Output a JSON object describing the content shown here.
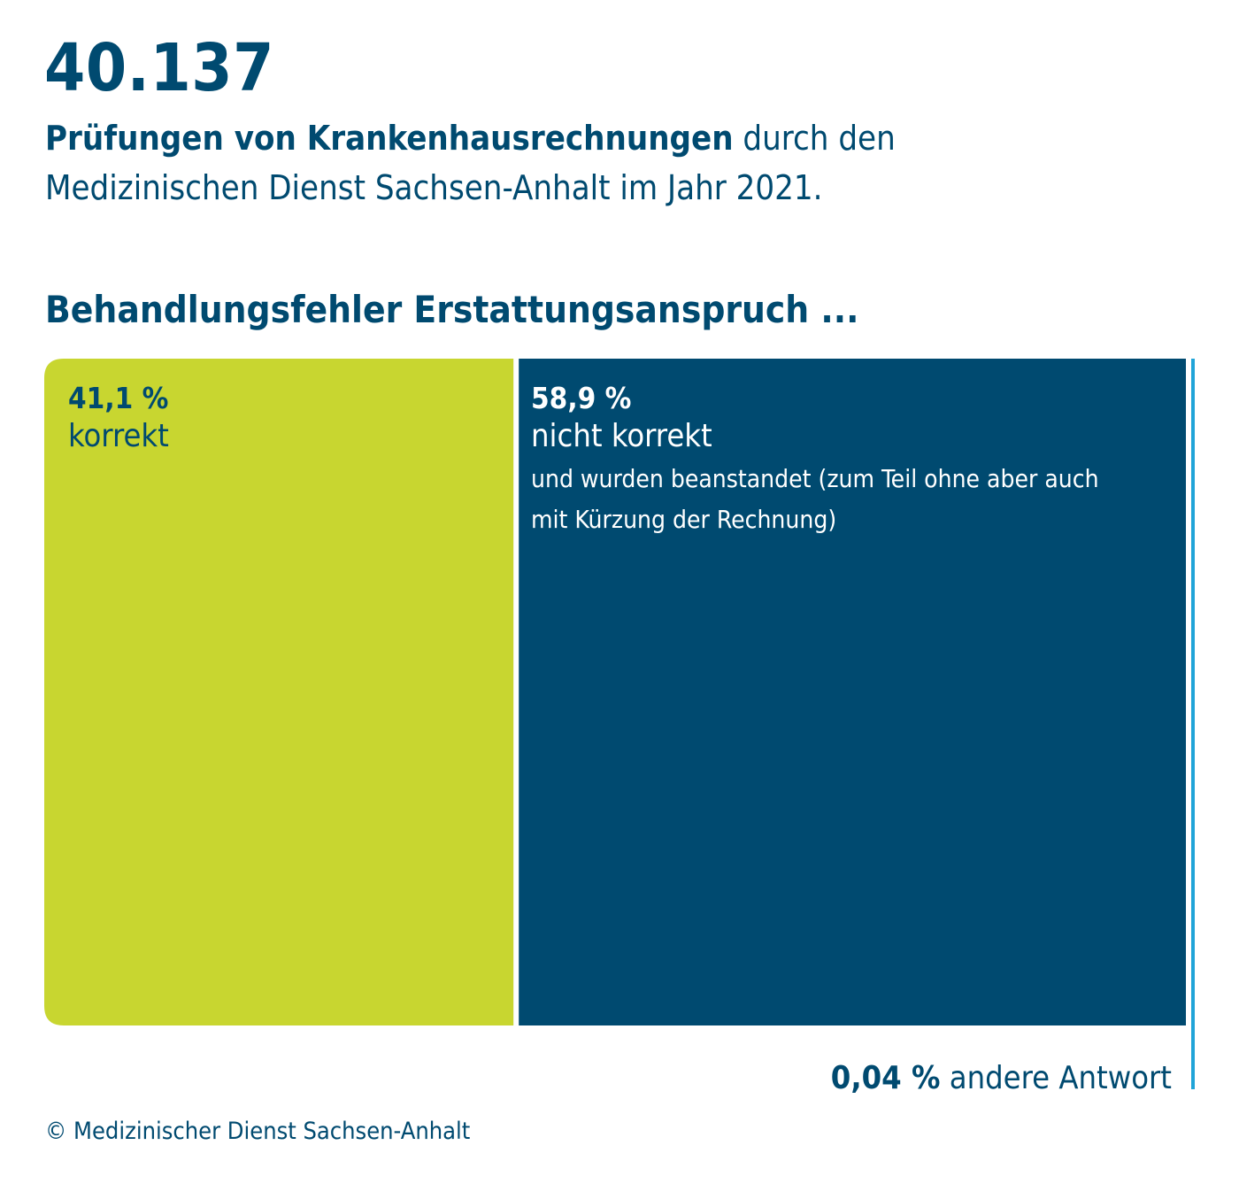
{
  "header": {
    "big_number": "40.137",
    "subtitle_bold": "Prüfungen von Krankenhausrechnungen",
    "subtitle_rest": " durch den Medizinischen Dienst Sachsen-Anhalt im Jahr 2021."
  },
  "section_title": "Behandlungsfehler Erstattungsanspruch ...",
  "colors": {
    "correct": "#c8d630",
    "not_correct": "#004a70",
    "other": "#20a4d8",
    "text": "#004a70"
  },
  "chart_data": {
    "type": "bar",
    "orientation": "horizontal-stacked",
    "categories": [
      "korrekt",
      "nicht korrekt",
      "andere Antwort"
    ],
    "values": [
      41.1,
      58.9,
      0.04
    ],
    "unit": "%",
    "segments": [
      {
        "pct_label": "41,1 %",
        "name": "korrekt",
        "note": ""
      },
      {
        "pct_label": "58,9 %",
        "name": "nicht korrekt",
        "note": "und wurden beanstandet (zum Teil ohne aber auch mit Kürzung der Rechnung)"
      },
      {
        "pct_label": "0,04 %",
        "name": "andere Antwort",
        "note": ""
      }
    ]
  },
  "footer": {
    "copyright": "© Medizinischer Dienst Sachsen-Anhalt"
  }
}
